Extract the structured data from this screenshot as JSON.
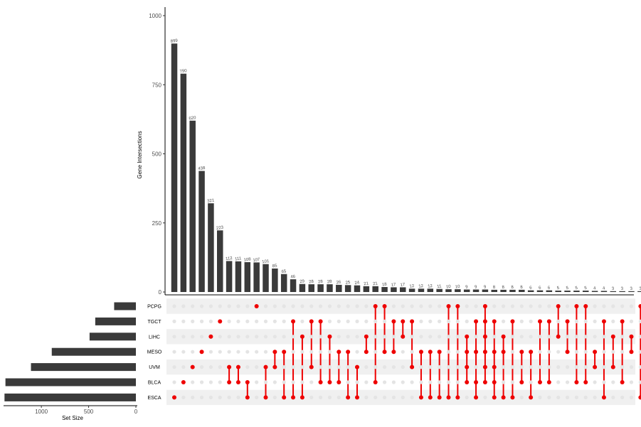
{
  "chart_data": {
    "type": "upset",
    "ylabel": "Gene Intersections",
    "xlabel_sets": "Set Size",
    "y_ticks": [
      "0",
      "250",
      "500",
      "750",
      "1000"
    ],
    "ylim": [
      0,
      1000
    ],
    "set_size_ticks": [
      "1000",
      "500",
      "0"
    ],
    "set_size_lim": [
      1400,
      0
    ],
    "sets": [
      "PCPG",
      "TGCT",
      "LIHC",
      "MESO",
      "UVM",
      "BLCA",
      "ESCA"
    ],
    "set_sizes": [
      230,
      430,
      490,
      890,
      1110,
      1380,
      1390
    ],
    "intersections": [
      {
        "size": 899,
        "label": "899",
        "sets": [
          "ESCA"
        ]
      },
      {
        "size": 790,
        "label": "790",
        "sets": [
          "BLCA"
        ]
      },
      {
        "size": 620,
        "label": "620",
        "sets": [
          "UVM"
        ]
      },
      {
        "size": 438,
        "label": "438",
        "sets": [
          "MESO"
        ]
      },
      {
        "size": 321,
        "label": "321",
        "sets": [
          "LIHC"
        ]
      },
      {
        "size": 223,
        "label": "223",
        "sets": [
          "TGCT"
        ]
      },
      {
        "size": 112,
        "label": "112",
        "sets": [
          "UVM",
          "BLCA"
        ]
      },
      {
        "size": 111,
        "label": "111",
        "sets": [
          "UVM",
          "BLCA"
        ]
      },
      {
        "size": 108,
        "label": "108",
        "sets": [
          "BLCA",
          "ESCA"
        ]
      },
      {
        "size": 107,
        "label": "107",
        "sets": [
          "PCPG"
        ]
      },
      {
        "size": 101,
        "label": "101",
        "sets": [
          "UVM",
          "ESCA"
        ]
      },
      {
        "size": 85,
        "label": "85",
        "sets": [
          "MESO",
          "UVM"
        ]
      },
      {
        "size": 65,
        "label": "65",
        "sets": [
          "MESO",
          "ESCA"
        ]
      },
      {
        "size": 46,
        "label": "46",
        "sets": [
          "TGCT",
          "ESCA"
        ]
      },
      {
        "size": 29,
        "label": "29",
        "sets": [
          "LIHC",
          "ESCA"
        ]
      },
      {
        "size": 28,
        "label": "28",
        "sets": [
          "TGCT",
          "UVM"
        ]
      },
      {
        "size": 28,
        "label": "28",
        "sets": [
          "TGCT",
          "BLCA"
        ]
      },
      {
        "size": 28,
        "label": "28",
        "sets": [
          "LIHC",
          "BLCA"
        ]
      },
      {
        "size": 26,
        "label": "26",
        "sets": [
          "MESO",
          "BLCA"
        ]
      },
      {
        "size": 25,
        "label": "25",
        "sets": [
          "MESO",
          "ESCA"
        ]
      },
      {
        "size": 24,
        "label": "24",
        "sets": [
          "UVM",
          "ESCA"
        ]
      },
      {
        "size": 21,
        "label": "21",
        "sets": [
          "LIHC",
          "MESO"
        ]
      },
      {
        "size": 21,
        "label": "21",
        "sets": [
          "PCPG",
          "BLCA"
        ]
      },
      {
        "size": 18,
        "label": "18",
        "sets": [
          "PCPG",
          "MESO"
        ]
      },
      {
        "size": 17,
        "label": "17",
        "sets": [
          "TGCT",
          "MESO"
        ]
      },
      {
        "size": 17,
        "label": "17",
        "sets": [
          "TGCT",
          "LIHC"
        ]
      },
      {
        "size": 12,
        "label": "12",
        "sets": [
          "TGCT",
          "UVM"
        ]
      },
      {
        "size": 12,
        "label": "12",
        "sets": [
          "MESO",
          "ESCA"
        ]
      },
      {
        "size": 12,
        "label": "12",
        "sets": [
          "MESO",
          "ESCA"
        ]
      },
      {
        "size": 11,
        "label": "11",
        "sets": [
          "MESO",
          "ESCA"
        ]
      },
      {
        "size": 10,
        "label": "10",
        "sets": [
          "PCPG",
          "ESCA"
        ]
      },
      {
        "size": 10,
        "label": "10",
        "sets": [
          "PCPG",
          "ESCA"
        ]
      },
      {
        "size": 9,
        "label": "9",
        "sets": [
          "LIHC",
          "MESO",
          "UVM",
          "BLCA"
        ]
      },
      {
        "size": 9,
        "label": "9",
        "sets": [
          "TGCT",
          "MESO",
          "BLCA",
          "ESCA"
        ]
      },
      {
        "size": 9,
        "label": "9",
        "sets": [
          "PCPG",
          "TGCT",
          "LIHC",
          "MESO",
          "UVM",
          "BLCA"
        ]
      },
      {
        "size": 8,
        "label": "8",
        "sets": [
          "TGCT",
          "MESO",
          "UVM",
          "BLCA",
          "ESCA"
        ]
      },
      {
        "size": 8,
        "label": "8",
        "sets": [
          "LIHC",
          "MESO",
          "ESCA"
        ]
      },
      {
        "size": 8,
        "label": "8",
        "sets": [
          "TGCT",
          "ESCA"
        ]
      },
      {
        "size": 8,
        "label": "8",
        "sets": [
          "MESO",
          "BLCA"
        ]
      },
      {
        "size": 6,
        "label": "6",
        "sets": [
          "MESO",
          "ESCA"
        ]
      },
      {
        "size": 6,
        "label": "6",
        "sets": [
          "TGCT",
          "BLCA"
        ]
      },
      {
        "size": 6,
        "label": "6",
        "sets": [
          "TGCT",
          "BLCA"
        ]
      },
      {
        "size": 5,
        "label": "5",
        "sets": [
          "PCPG",
          "LIHC"
        ]
      },
      {
        "size": 5,
        "label": "5",
        "sets": [
          "TGCT",
          "MESO"
        ]
      },
      {
        "size": 5,
        "label": "5",
        "sets": [
          "PCPG",
          "BLCA"
        ]
      },
      {
        "size": 5,
        "label": "5",
        "sets": [
          "PCPG",
          "BLCA"
        ]
      },
      {
        "size": 4,
        "label": "4",
        "sets": [
          "MESO",
          "UVM"
        ]
      },
      {
        "size": 4,
        "label": "4",
        "sets": [
          "TGCT",
          "ESCA"
        ]
      },
      {
        "size": 3,
        "label": "3",
        "sets": [
          "LIHC",
          "UVM"
        ]
      },
      {
        "size": 3,
        "label": "3",
        "sets": [
          "TGCT",
          "BLCA"
        ]
      },
      {
        "size": 3,
        "label": "3",
        "sets": [
          "LIHC",
          "MESO"
        ]
      },
      {
        "size": 3,
        "label": "3",
        "sets": [
          "PCPG",
          "ESCA"
        ]
      }
    ],
    "colors": {
      "bar": "#3a3a3a",
      "dot_active": "#ee0000",
      "dot_inactive": "#e4e4e4",
      "stripe": "#f0f0f0"
    }
  }
}
